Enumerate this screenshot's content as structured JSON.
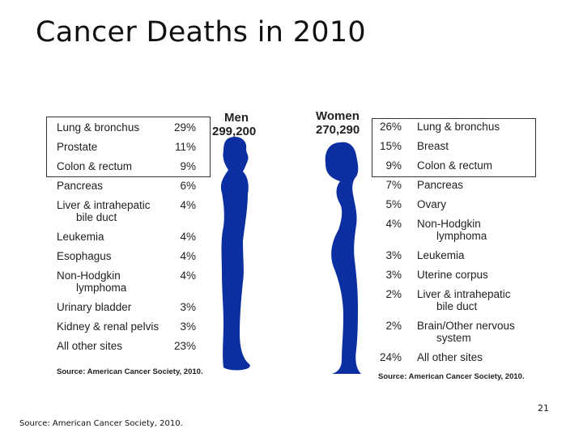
{
  "slide": {
    "title": "Cancer Deaths in 2010",
    "source": "Source: American Cancer Society, 2010.",
    "page_number": "21"
  },
  "chart_data": [
    {
      "type": "table",
      "title": "Men",
      "subtitle": "299,200",
      "source_note": "Source: American Cancer Society, 2010.",
      "figure_color": "#0b2fa0",
      "highlighted_rows": 3,
      "rows": [
        {
          "category": "Lung & bronchus",
          "display": "29%",
          "value": 29
        },
        {
          "category": "Prostate",
          "display": "11%",
          "value": 11
        },
        {
          "category": "Colon & rectum",
          "display": "9%",
          "value": 9
        },
        {
          "category": "Pancreas",
          "display": "6%",
          "value": 6
        },
        {
          "category": "Liver & intrahepatic",
          "category_line2": "bile duct",
          "display": "4%",
          "value": 4
        },
        {
          "category": "Leukemia",
          "display": "4%",
          "value": 4
        },
        {
          "category": "Esophagus",
          "display": "4%",
          "value": 4
        },
        {
          "category": "Non-Hodgkin",
          "category_line2": "lymphoma",
          "display": "4%",
          "value": 4
        },
        {
          "category": "Urinary bladder",
          "display": "3%",
          "value": 3
        },
        {
          "category": "Kidney & renal pelvis",
          "display": "3%",
          "value": 3
        },
        {
          "category": "All other sites",
          "display": "23%",
          "value": 23
        }
      ]
    },
    {
      "type": "table",
      "title": "Women",
      "subtitle": "270,290",
      "source_note": "Source: American Cancer Society, 2010.",
      "figure_color": "#0b2fa0",
      "highlighted_rows": 3,
      "rows": [
        {
          "category": "Lung & bronchus",
          "display": "26%",
          "value": 26
        },
        {
          "category": "Breast",
          "display": "15%",
          "value": 15
        },
        {
          "category": "Colon & rectum",
          "display": "9%",
          "value": 9
        },
        {
          "category": "Pancreas",
          "display": "7%",
          "value": 7
        },
        {
          "category": "Ovary",
          "display": "5%",
          "value": 5
        },
        {
          "category": "Non-Hodgkin",
          "category_line2": "lymphoma",
          "display": "4%",
          "value": 4
        },
        {
          "category": "Leukemia",
          "display": "3%",
          "value": 3
        },
        {
          "category": "Uterine corpus",
          "display": "3%",
          "value": 3
        },
        {
          "category": "Liver & intrahepatic",
          "category_line2": "bile duct",
          "display": "2%",
          "value": 2
        },
        {
          "category": "Brain/Other nervous",
          "category_line2": "system",
          "display": "2%",
          "value": 2
        },
        {
          "category": "All other sites",
          "display": "24%",
          "value": 24
        }
      ]
    }
  ]
}
